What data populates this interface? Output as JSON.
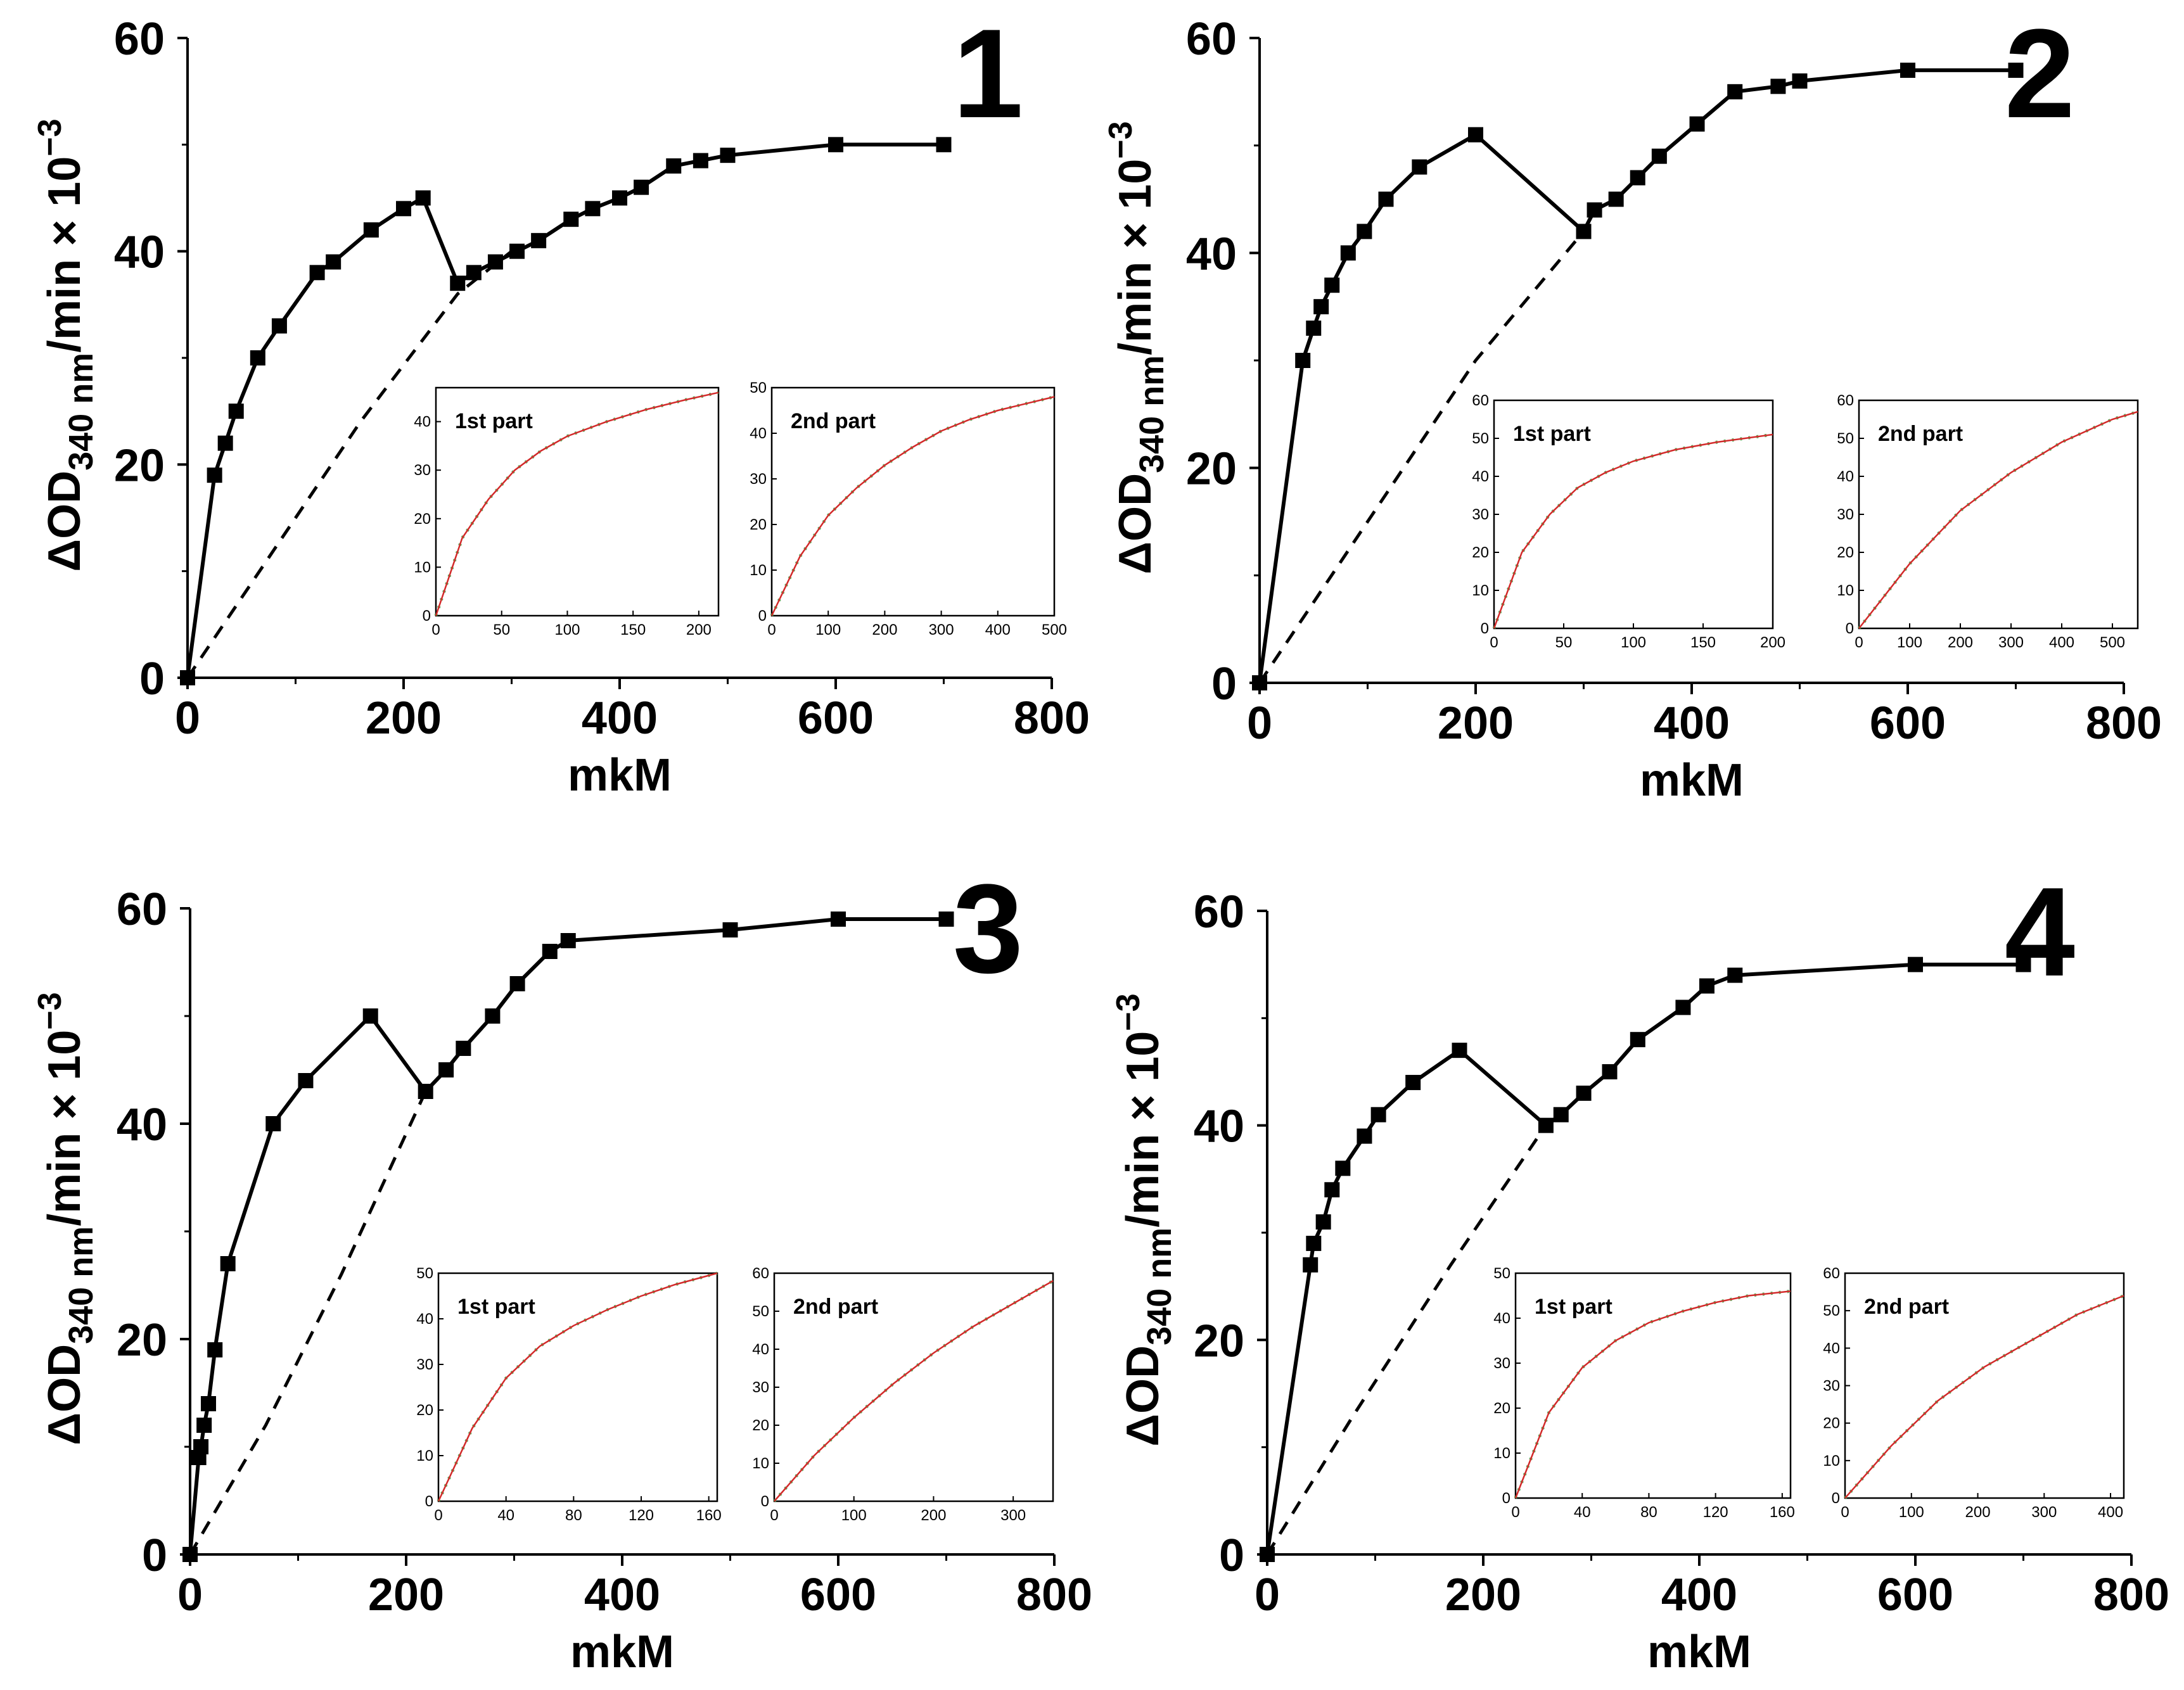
{
  "figure": {
    "y_label_delta": "Δ",
    "y_label_main": "OD",
    "y_label_sub": "340 nm",
    "y_label_rest": "/min × 10",
    "y_label_exp": "−3",
    "x_label": "mkM"
  },
  "chart_data": [
    {
      "id": "1",
      "type": "line",
      "panel_number": "1",
      "xlabel": "mkM",
      "ylabel": "ΔOD340 nm/min × 10−3",
      "xlim": [
        0,
        800
      ],
      "ylim": [
        0,
        60
      ],
      "xticks": [
        "0",
        "200",
        "400",
        "600",
        "800"
      ],
      "yticks": [
        "0",
        "20",
        "40",
        "60"
      ],
      "series": [
        {
          "name": "measured",
          "style": "solid-markers",
          "x": [
            0,
            25,
            35,
            45,
            65,
            85,
            120,
            135,
            170,
            200,
            218,
            250,
            265,
            285,
            305,
            325,
            355,
            375,
            400,
            420,
            450,
            475,
            500,
            600,
            700
          ],
          "y": [
            0,
            19,
            22,
            25,
            30,
            33,
            38,
            39,
            42,
            44,
            45,
            37,
            38,
            39,
            40,
            41,
            43,
            44,
            45,
            46,
            48,
            48.5,
            49,
            50,
            50
          ]
        },
        {
          "name": "dashed",
          "style": "dashed",
          "x": [
            0,
            80,
            160,
            250,
            300
          ],
          "y": [
            0,
            12,
            24,
            36,
            40
          ]
        }
      ],
      "insets": [
        {
          "title": "1st part",
          "xlim": [
            0,
            215
          ],
          "ylim": [
            0,
            47
          ],
          "xticks": [
            "0",
            "50",
            "100",
            "150",
            "200"
          ],
          "yticks": [
            "0",
            "10",
            "20",
            "30",
            "40"
          ],
          "x": [
            0,
            20,
            40,
            60,
            80,
            100,
            130,
            160,
            190,
            215
          ],
          "y": [
            0,
            16,
            24,
            30,
            34,
            37,
            40,
            42.5,
            44.5,
            46
          ]
        },
        {
          "title": "2nd part",
          "xlim": [
            0,
            500
          ],
          "ylim": [
            0,
            50
          ],
          "xticks": [
            "0",
            "100",
            "200",
            "300",
            "400",
            "500"
          ],
          "yticks": [
            "0",
            "10",
            "20",
            "30",
            "40",
            "50"
          ],
          "x": [
            0,
            50,
            100,
            150,
            200,
            250,
            300,
            350,
            400,
            450,
            500
          ],
          "y": [
            0,
            13,
            22,
            28,
            33,
            37,
            40.5,
            43,
            45,
            46.5,
            48
          ]
        }
      ]
    },
    {
      "id": "2",
      "type": "line",
      "panel_number": "2",
      "xlabel": "mkM",
      "ylabel": "ΔOD340 nm/min × 10−3",
      "xlim": [
        0,
        800
      ],
      "ylim": [
        0,
        60
      ],
      "xticks": [
        "0",
        "200",
        "400",
        "600",
        "800"
      ],
      "yticks": [
        "0",
        "20",
        "40",
        "60"
      ],
      "series": [
        {
          "name": "measured",
          "style": "solid-markers",
          "x": [
            0,
            40,
            50,
            57,
            67,
            82,
            97,
            117,
            148,
            200,
            300,
            310,
            330,
            350,
            370,
            405,
            440,
            480,
            500,
            600,
            700
          ],
          "y": [
            0,
            30,
            33,
            35,
            37,
            40,
            42,
            45,
            48,
            51,
            42,
            44,
            45,
            47,
            49,
            52,
            55,
            55.5,
            56,
            57,
            57
          ]
        },
        {
          "name": "dashed",
          "style": "dashed",
          "x": [
            0,
            100,
            200,
            300
          ],
          "y": [
            0,
            15,
            30,
            42
          ]
        }
      ],
      "insets": [
        {
          "title": "1st part",
          "xlim": [
            0,
            200
          ],
          "ylim": [
            0,
            60
          ],
          "xticks": [
            "0",
            "50",
            "100",
            "150",
            "200"
          ],
          "yticks": [
            "0",
            "10",
            "20",
            "30",
            "40",
            "50",
            "60"
          ],
          "x": [
            0,
            20,
            40,
            60,
            80,
            100,
            130,
            160,
            200
          ],
          "y": [
            0,
            20,
            30,
            37,
            41,
            44,
            47,
            49,
            51
          ]
        },
        {
          "title": "2nd part",
          "xlim": [
            0,
            550
          ],
          "ylim": [
            0,
            60
          ],
          "xticks": [
            "0",
            "100",
            "200",
            "300",
            "400",
            "500"
          ],
          "yticks": [
            "0",
            "10",
            "20",
            "30",
            "40",
            "50",
            "60"
          ],
          "x": [
            0,
            100,
            200,
            300,
            400,
            500,
            550
          ],
          "y": [
            0,
            17,
            31,
            41,
            49,
            55,
            57
          ]
        }
      ]
    },
    {
      "id": "3",
      "type": "line",
      "panel_number": "3",
      "xlabel": "mkM",
      "ylabel": "ΔOD340 nm/min × 10−3",
      "xlim": [
        0,
        800
      ],
      "ylim": [
        0,
        60
      ],
      "xticks": [
        "0",
        "200",
        "400",
        "600",
        "800"
      ],
      "yticks": [
        "0",
        "20",
        "40",
        "60"
      ],
      "series": [
        {
          "name": "measured",
          "style": "solid-markers",
          "x": [
            0,
            8,
            10,
            13,
            17,
            23,
            35,
            77,
            107,
            167,
            218,
            237,
            253,
            280,
            303,
            333,
            350,
            500,
            600,
            700
          ],
          "y": [
            0,
            9,
            10,
            12,
            14,
            19,
            27,
            40,
            44,
            50,
            43,
            45,
            47,
            50,
            53,
            56,
            57,
            58,
            59,
            59
          ]
        },
        {
          "name": "dashed",
          "style": "dashed",
          "x": [
            0,
            70,
            140,
            218
          ],
          "y": [
            0,
            12,
            26,
            43
          ]
        }
      ],
      "insets": [
        {
          "title": "1st part",
          "xlim": [
            0,
            165
          ],
          "ylim": [
            0,
            50
          ],
          "xticks": [
            "0",
            "40",
            "80",
            "120",
            "160"
          ],
          "yticks": [
            "0",
            "10",
            "20",
            "30",
            "40",
            "50"
          ],
          "x": [
            0,
            20,
            40,
            60,
            80,
            100,
            120,
            140,
            165
          ],
          "y": [
            0,
            16,
            27,
            34,
            38.5,
            42,
            45,
            47.5,
            50
          ]
        },
        {
          "title": "2nd part",
          "xlim": [
            0,
            350
          ],
          "ylim": [
            0,
            60
          ],
          "xticks": [
            "0",
            "100",
            "200",
            "300"
          ],
          "yticks": [
            "0",
            "10",
            "20",
            "30",
            "40",
            "50",
            "60"
          ],
          "x": [
            0,
            50,
            100,
            150,
            200,
            250,
            300,
            350
          ],
          "y": [
            0,
            12,
            22,
            31,
            39,
            46,
            52,
            58
          ]
        }
      ]
    },
    {
      "id": "4",
      "type": "line",
      "panel_number": "4",
      "xlabel": "mkM",
      "ylabel": "ΔOD340 nm/min × 10−3",
      "xlim": [
        0,
        800
      ],
      "ylim": [
        0,
        60
      ],
      "xticks": [
        "0",
        "200",
        "400",
        "600",
        "800"
      ],
      "yticks": [
        "0",
        "20",
        "40",
        "60"
      ],
      "series": [
        {
          "name": "measured",
          "style": "solid-markers",
          "x": [
            0,
            40,
            43,
            52,
            60,
            70,
            90,
            103,
            135,
            178,
            258,
            272,
            293,
            317,
            343,
            385,
            407,
            433,
            600,
            700
          ],
          "y": [
            0,
            27,
            29,
            31,
            34,
            36,
            39,
            41,
            44,
            47,
            40,
            41,
            43,
            45,
            48,
            51,
            53,
            54,
            55,
            55
          ]
        },
        {
          "name": "dashed",
          "style": "dashed",
          "x": [
            0,
            80,
            170,
            258
          ],
          "y": [
            0,
            13,
            27,
            40
          ]
        }
      ],
      "insets": [
        {
          "title": "1st part",
          "xlim": [
            0,
            165
          ],
          "ylim": [
            0,
            50
          ],
          "xticks": [
            "0",
            "40",
            "80",
            "120",
            "160"
          ],
          "yticks": [
            "0",
            "10",
            "20",
            "30",
            "40",
            "50"
          ],
          "x": [
            0,
            20,
            40,
            60,
            80,
            100,
            120,
            140,
            165
          ],
          "y": [
            0,
            19,
            29,
            35,
            39,
            41.5,
            43.5,
            45,
            46
          ]
        },
        {
          "title": "2nd part",
          "xlim": [
            0,
            420
          ],
          "ylim": [
            0,
            60
          ],
          "xticks": [
            "0",
            "100",
            "200",
            "300",
            "400"
          ],
          "yticks": [
            "0",
            "10",
            "20",
            "30",
            "40",
            "50",
            "60"
          ],
          "x": [
            0,
            70,
            140,
            210,
            280,
            350,
            420
          ],
          "y": [
            0,
            14,
            26,
            35,
            42,
            49,
            54
          ]
        }
      ]
    }
  ]
}
